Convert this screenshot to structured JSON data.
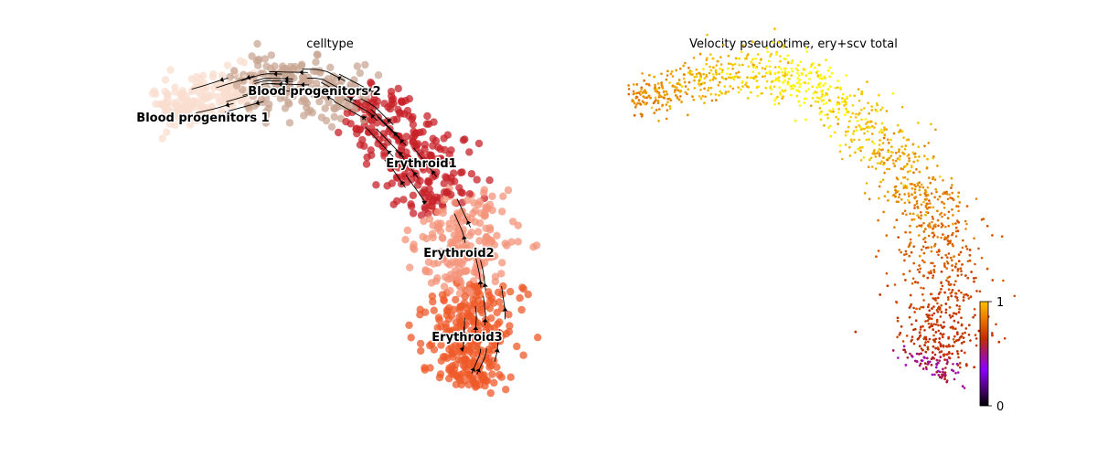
{
  "chart_data": [
    {
      "type": "scatter",
      "subtype": "embedding-streamplot",
      "title": "celltype",
      "xlabel": "",
      "ylabel": "",
      "axes": "off",
      "grid": false,
      "categories": [
        "Blood progenitors 1",
        "Blood progenitors 2",
        "Erythroid1",
        "Erythroid2",
        "Erythroid3"
      ],
      "colors": {
        "Blood progenitors 1": "#f9decf",
        "Blood progenitors 2": "#c9a794",
        "Erythroid1": "#c72228",
        "Erythroid2": "#f4937a",
        "Erythroid3": "#ef5a28"
      },
      "labels": [
        {
          "text": "Blood progenitors 1"
        },
        {
          "text": "Blood progenitors 2"
        },
        {
          "text": "Erythroid1"
        },
        {
          "text": "Erythroid2"
        },
        {
          "text": "Erythroid3"
        }
      ],
      "overlay": "velocity streamlines with arrows"
    },
    {
      "type": "scatter",
      "subtype": "embedding-continuous",
      "title": "Velocity pseudotime, ery+scv total",
      "xlabel": "",
      "ylabel": "",
      "axes": "off",
      "grid": false,
      "colormap": "gnuplot",
      "colorbar": {
        "ticks": [
          "0",
          "1"
        ],
        "range": [
          0,
          1
        ],
        "placement": "right"
      }
    }
  ]
}
